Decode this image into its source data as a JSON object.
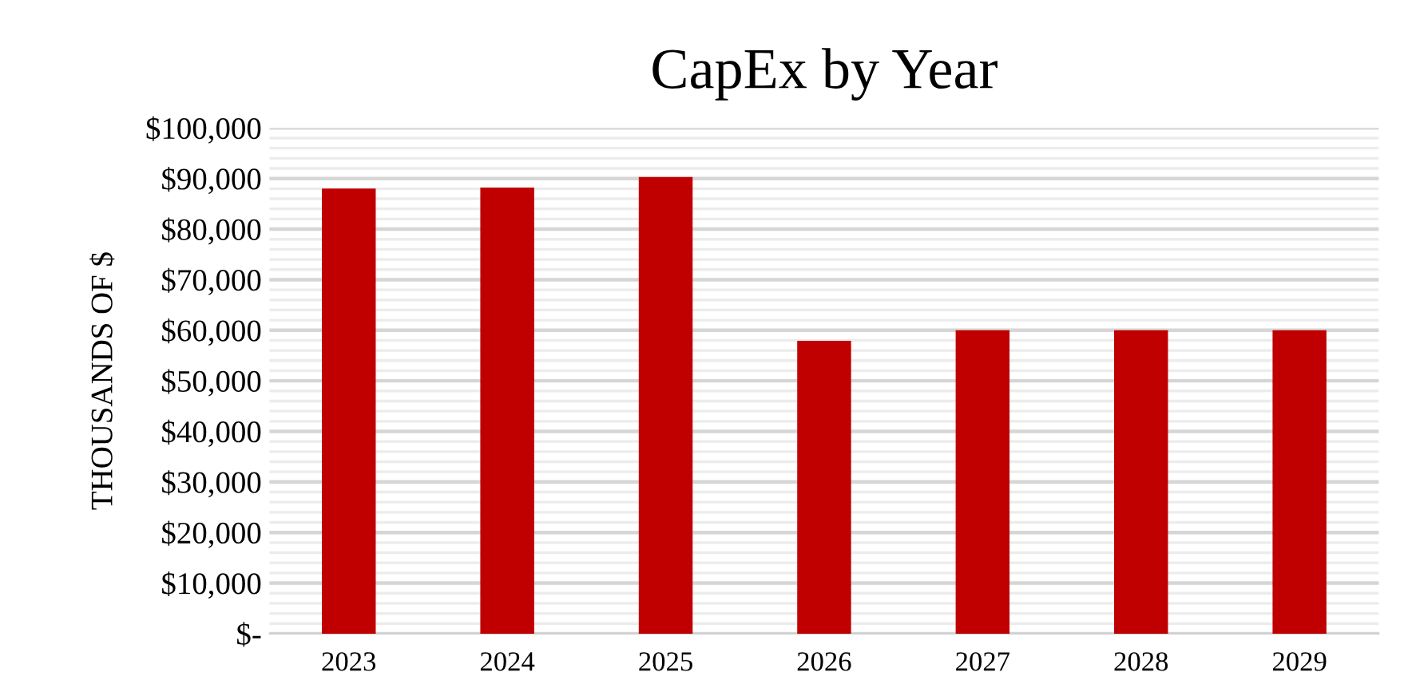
{
  "chart_data": {
    "type": "bar",
    "title": "CapEx by Year",
    "ylabel": "THOUSANDS OF $",
    "categories": [
      "2023",
      "2024",
      "2025",
      "2026",
      "2027",
      "2028",
      "2029"
    ],
    "values": [
      88000,
      88200,
      90300,
      57900,
      60000,
      60000,
      60000
    ],
    "color": "#c00000",
    "ylim": [
      0,
      100000
    ],
    "yticks": [
      {
        "value": 0,
        "label": "$-"
      },
      {
        "value": 10000,
        "label": "$10,000"
      },
      {
        "value": 20000,
        "label": "$20,000"
      },
      {
        "value": 30000,
        "label": "$30,000"
      },
      {
        "value": 40000,
        "label": "$40,000"
      },
      {
        "value": 50000,
        "label": "$50,000"
      },
      {
        "value": 60000,
        "label": "$60,000"
      },
      {
        "value": 70000,
        "label": "$70,000"
      },
      {
        "value": 80000,
        "label": "$80,000"
      },
      {
        "value": 90000,
        "label": "$90,000"
      },
      {
        "value": 100000,
        "label": "$100,000"
      }
    ],
    "grid": true,
    "legend": false
  }
}
